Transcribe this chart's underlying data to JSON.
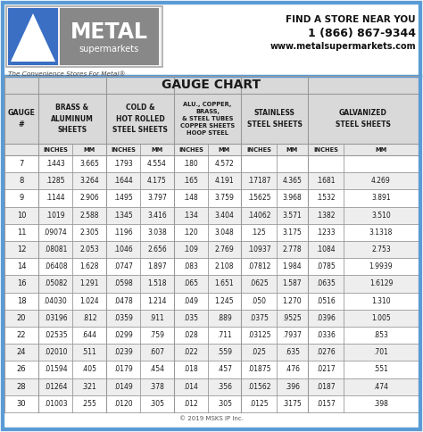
{
  "title": "GAUGE CHART",
  "copyright": "© 2019 MSKS IP Inc.",
  "logo_text1": "METAL",
  "logo_text2": "supermarkets",
  "logo_tagline": "The Convenience Stores For Metal®",
  "contact_line1": "FIND A STORE NEAR YOU",
  "contact_line2": "1 (866) 867-9344",
  "contact_line3": "www.metalsupermarkets.com",
  "rows": [
    [
      "7",
      ".1443",
      "3.665",
      ".1793",
      "4.554",
      ".180",
      "4.572",
      "",
      "",
      "",
      ""
    ],
    [
      "8",
      ".1285",
      "3.264",
      ".1644",
      "4.175",
      ".165",
      "4.191",
      ".17187",
      "4.365",
      ".1681",
      "4.269"
    ],
    [
      "9",
      ".1144",
      "2.906",
      ".1495",
      "3.797",
      ".148",
      "3.759",
      ".15625",
      "3.968",
      ".1532",
      "3.891"
    ],
    [
      "10",
      ".1019",
      "2.588",
      ".1345",
      "3.416",
      ".134",
      "3.404",
      ".14062",
      "3.571",
      ".1382",
      "3.510"
    ],
    [
      "11",
      ".09074",
      "2.305",
      ".1196",
      "3.038",
      ".120",
      "3.048",
      ".125",
      "3.175",
      ".1233",
      "3.1318"
    ],
    [
      "12",
      ".08081",
      "2.053",
      ".1046",
      "2.656",
      ".109",
      "2.769",
      ".10937",
      "2.778",
      ".1084",
      "2.753"
    ],
    [
      "14",
      ".06408",
      "1.628",
      ".0747",
      "1.897",
      ".083",
      "2.108",
      ".07812",
      "1.984",
      ".0785",
      "1.9939"
    ],
    [
      "16",
      ".05082",
      "1.291",
      ".0598",
      "1.518",
      ".065",
      "1.651",
      ".0625",
      "1.587",
      ".0635",
      "1.6129"
    ],
    [
      "18",
      ".04030",
      "1.024",
      ".0478",
      "1.214",
      ".049",
      "1.245",
      ".050",
      "1.270",
      ".0516",
      "1.310"
    ],
    [
      "20",
      ".03196",
      ".812",
      ".0359",
      ".911",
      ".035",
      ".889",
      ".0375",
      ".9525",
      ".0396",
      "1.005"
    ],
    [
      "22",
      ".02535",
      ".644",
      ".0299",
      ".759",
      ".028",
      ".711",
      ".03125",
      ".7937",
      ".0336",
      ".853"
    ],
    [
      "24",
      ".02010",
      ".511",
      ".0239",
      ".607",
      ".022",
      ".559",
      ".025",
      ".635",
      ".0276",
      ".701"
    ],
    [
      "26",
      ".01594",
      ".405",
      ".0179",
      ".454",
      ".018",
      ".457",
      ".01875",
      ".476",
      ".0217",
      ".551"
    ],
    [
      "28",
      ".01264",
      ".321",
      ".0149",
      ".378",
      ".014",
      ".356",
      ".01562",
      ".396",
      ".0187",
      ".474"
    ],
    [
      "30",
      ".01003",
      ".255",
      ".0120",
      ".305",
      ".012",
      ".305",
      ".0125",
      ".3175",
      ".0157",
      ".398"
    ]
  ],
  "border_color": "#5b9bd5",
  "table_border_color": "#5b9bd5",
  "grid_color": "#999999",
  "header_bg": "#d9d9d9",
  "subheader_bg": "#e8e8e8",
  "row_bg_even": "#ffffff",
  "row_bg_odd": "#eeeeee",
  "text_color": "#1a1a1a",
  "logo_blue": "#3a6fc4",
  "logo_gray": "#9c9c9c",
  "logo_dark_gray": "#555555"
}
